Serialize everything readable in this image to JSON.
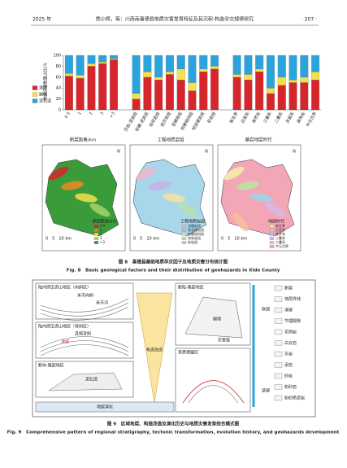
{
  "header": {
    "year": "2025 年",
    "running_title": "熊小辉，等：川西南喜德县地质灾害发育特征及其沉积-构造孕灾规律研究",
    "page": "· 207 ·"
  },
  "chart_data": {
    "type": "bar",
    "stacked": true,
    "y_label": "地质灾害数量占比/%",
    "categories": [
      "0.5",
      "1",
      "2",
      "3",
      ">3",
      "页岩-泥岩组",
      "软硬-泥岩组",
      "较软岩组",
      "泥页岩组",
      "坚硬岩组",
      "软硬相间组",
      "较坚硬岩组",
      "软岩组",
      "新生界",
      "白垩系",
      "侏罗系",
      "三叠系",
      "二叠系",
      "志留系",
      "奥陶系",
      "中元古界"
    ],
    "series": [
      {
        "name": "滑坡",
        "color": "#d7262b",
        "values": [
          62,
          58,
          80,
          85,
          92,
          20,
          60,
          55,
          65,
          55,
          35,
          70,
          75,
          60,
          55,
          70,
          30,
          45,
          50,
          50,
          55
        ]
      },
      {
        "name": "崩塌",
        "color": "#f3e04a",
        "values": [
          5,
          6,
          5,
          3,
          2,
          10,
          10,
          5,
          5,
          20,
          15,
          5,
          5,
          5,
          10,
          5,
          10,
          15,
          5,
          10,
          15
        ]
      },
      {
        "name": "泥石流",
        "color": "#2aa4dc",
        "values": [
          33,
          36,
          15,
          12,
          6,
          70,
          30,
          40,
          30,
          25,
          50,
          25,
          20,
          35,
          35,
          25,
          60,
          40,
          45,
          40,
          30
        ]
      }
    ],
    "ylim": [
      0,
      100
    ],
    "yticks": [
      0,
      20,
      40,
      60,
      80,
      100
    ]
  },
  "maps": [
    {
      "title": "断层距离/km",
      "legend_title": "断层距离/km",
      "legend": [
        {
          "label": "0.5",
          "color": "#d7262b"
        },
        {
          "label": "1",
          "color": "#f08a24"
        },
        {
          "label": "2",
          "color": "#f3e04a"
        },
        {
          "label": "3",
          "color": "#a6d36a"
        },
        {
          "label": ">3",
          "color": "#3a9b3a"
        }
      ]
    },
    {
      "title": "工程地质岩组",
      "legend_title": "工程地质岩组",
      "legend": [
        {
          "label": "坚硬岩组",
          "color": "#f3b3c8"
        },
        {
          "label": "较坚硬岩组",
          "color": "#c7b3e8"
        },
        {
          "label": "软硬相间组",
          "color": "#f6e3a0"
        },
        {
          "label": "较软岩组",
          "color": "#b9e0b0"
        },
        {
          "label": "软岩组",
          "color": "#a8d6ea"
        }
      ]
    },
    {
      "title": "基岩地层时代",
      "legend_title": "地层时代",
      "legend": [
        {
          "label": "新生界",
          "color": "#f7f0a8"
        },
        {
          "label": "白垩系",
          "color": "#b8e3a6"
        },
        {
          "label": "侏罗系",
          "color": "#9fd3e8"
        },
        {
          "label": "三叠系",
          "color": "#d8b6e6"
        },
        {
          "label": "二叠系",
          "color": "#f4c09a"
        },
        {
          "label": "中元古界",
          "color": "#f3a6b6"
        }
      ]
    }
  ],
  "map_common": {
    "north": "N",
    "scale": "0　5　10 km"
  },
  "fig8": {
    "caption_cn": "图 8　喜德县基础地质孕灾因子及地质灾害分布统计图",
    "caption_en": "Fig. 8　Basic geological factors and their distribution of geohazards in Xide County"
  },
  "fig9": {
    "boxes": [
      "陆内挤压造山地区（向斜区）",
      "陆内挤压造山地区（背斜区）",
      "断块-隆起地区",
      "断陷-隆起地区",
      "变质褶皱区"
    ],
    "labels": [
      "米市向斜",
      "米市河",
      "且拖背斜",
      "滑坡",
      "泥石流",
      "崩塌",
      "灾害链",
      "构造改造",
      "地层演化",
      "软弱",
      "坚硬"
    ],
    "legend": [
      "断层",
      "地层界线",
      "滑坡",
      "节理裂隙",
      "花岗岩",
      "白云岩",
      "灰岩",
      "泥岩",
      "砂岩",
      "粉砂岩",
      "粉砂质泥岩"
    ],
    "caption_cn": "图 9　区域地层、构造改造及演化历史与地质灾害发育综合模式图",
    "caption_en": "Fig. 9　Comprehensive pattern of regional stratigraphy, tectonic transformation, evolution history, and geohazards development"
  }
}
